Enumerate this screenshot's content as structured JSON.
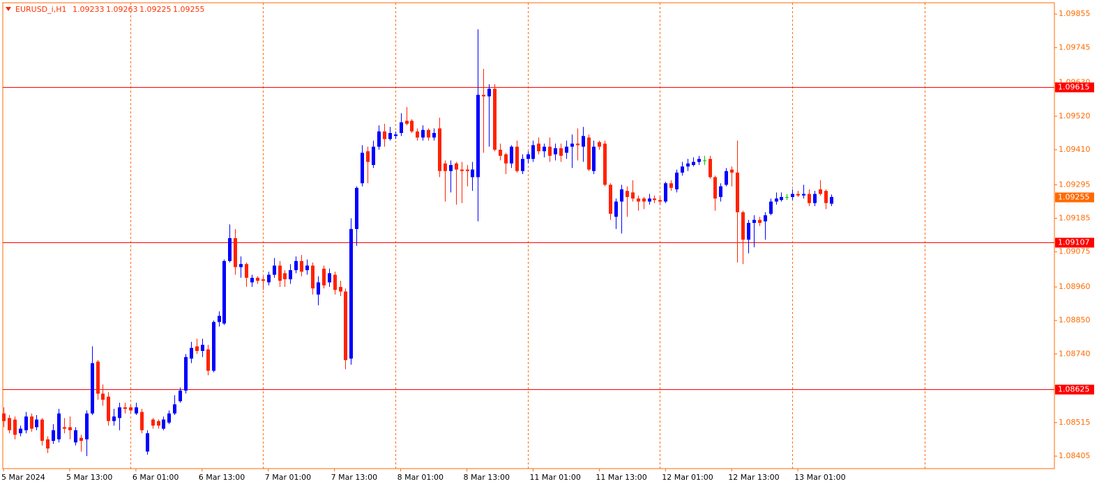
{
  "chart_data": {
    "type": "candlestick",
    "symbol": "EURUSD_i,H1",
    "up_color": "#0000ff",
    "down_color": "#ff2200",
    "doji_color": "#00c000",
    "axis_color": "#ff6a00",
    "hline_color": "#ff0000",
    "separator_color": "#ff6a00",
    "candles": [
      [
        1.08545,
        1.08565,
        1.085,
        1.0852
      ],
      [
        1.0853,
        1.0854,
        1.0848,
        1.0849
      ],
      [
        1.08525,
        1.08535,
        1.0846,
        1.08475
      ],
      [
        1.0848,
        1.08505,
        1.0847,
        1.08495
      ],
      [
        1.0849,
        1.0855,
        1.0848,
        1.08535
      ],
      [
        1.08535,
        1.08545,
        1.08485,
        1.08495
      ],
      [
        1.085,
        1.0854,
        1.0849,
        1.08525
      ],
      [
        1.08525,
        1.0853,
        1.0844,
        1.08455
      ],
      [
        1.0846,
        1.0847,
        1.08415,
        1.0843
      ],
      [
        1.08455,
        1.0851,
        1.08445,
        1.0849
      ],
      [
        1.0846,
        1.0856,
        1.0845,
        1.08545
      ],
      [
        1.085,
        1.0853,
        1.0848,
        1.08495
      ],
      [
        1.085,
        1.08535,
        1.0846,
        1.0849
      ],
      [
        1.0845,
        1.085,
        1.0844,
        1.0849
      ],
      [
        1.08465,
        1.08475,
        1.0842,
        1.08455
      ],
      [
        1.0846,
        1.08555,
        1.08405,
        1.08545
      ],
      [
        1.08545,
        1.08765,
        1.0854,
        1.0871
      ],
      [
        1.08715,
        1.0872,
        1.0859,
        1.0861
      ],
      [
        1.0861,
        1.0864,
        1.0857,
        1.0859
      ],
      [
        1.086,
        1.08615,
        1.08505,
        1.0852
      ],
      [
        1.0852,
        1.0856,
        1.08505,
        1.08535
      ],
      [
        1.0853,
        1.0858,
        1.0849,
        1.08565
      ],
      [
        1.08565,
        1.0858,
        1.08545,
        1.0856
      ],
      [
        1.08565,
        1.08575,
        1.08545,
        1.08555
      ],
      [
        1.08545,
        1.0858,
        1.0854,
        1.08565
      ],
      [
        1.0855,
        1.0856,
        1.0848,
        1.0849
      ],
      [
        1.0842,
        1.0849,
        1.0841,
        1.0848
      ],
      [
        1.08525,
        1.0853,
        1.08495,
        1.08505
      ],
      [
        1.0852,
        1.08525,
        1.08495,
        1.08505
      ],
      [
        1.08495,
        1.08535,
        1.0849,
        1.08525
      ],
      [
        1.08515,
        1.08555,
        1.0851,
        1.08545
      ],
      [
        1.08545,
        1.08605,
        1.0854,
        1.08575
      ],
      [
        1.08585,
        1.0863,
        1.0858,
        1.0862
      ],
      [
        1.0862,
        1.0874,
        1.0861,
        1.0873
      ],
      [
        1.08725,
        1.0878,
        1.0871,
        1.0876
      ],
      [
        1.08765,
        1.0879,
        1.0874,
        1.0875
      ],
      [
        1.0875,
        1.0879,
        1.0873,
        1.0877
      ],
      [
        1.08755,
        1.0877,
        1.0867,
        1.08685
      ],
      [
        1.08685,
        1.0885,
        1.0868,
        1.08845
      ],
      [
        1.08845,
        1.0888,
        1.0883,
        1.08865
      ],
      [
        1.0884,
        1.0905,
        1.08835,
        1.09045
      ],
      [
        1.09045,
        1.09165,
        1.0904,
        1.0912
      ],
      [
        1.0912,
        1.0915,
        1.09,
        1.09025
      ],
      [
        1.09025,
        1.0906,
        1.0899,
        1.09035
      ],
      [
        1.09035,
        1.0904,
        1.0896,
        1.0899
      ],
      [
        1.08975,
        1.09,
        1.0896,
        1.0899
      ],
      [
        1.0899,
        1.08995,
        1.0897,
        1.0898
      ],
      [
        1.08985,
        1.08995,
        1.0895,
        1.0898
      ],
      [
        1.08975,
        1.0901,
        1.08965,
        1.09
      ],
      [
        1.09,
        1.09055,
        1.0899,
        1.0903
      ],
      [
        1.0903,
        1.09045,
        1.0896,
        1.0898
      ],
      [
        1.09005,
        1.09015,
        1.0896,
        1.08985
      ],
      [
        1.08985,
        1.09035,
        1.0897,
        1.09015
      ],
      [
        1.09015,
        1.0906,
        1.09005,
        1.09045
      ],
      [
        1.09045,
        1.09065,
        1.08995,
        1.0901
      ],
      [
        1.09015,
        1.0905,
        1.09,
        1.0903
      ],
      [
        1.0903,
        1.0904,
        1.08935,
        1.08955
      ],
      [
        1.08935,
        1.08995,
        1.089,
        1.08975
      ],
      [
        1.0902,
        1.0903,
        1.08955,
        1.08965
      ],
      [
        1.08975,
        1.0902,
        1.0896,
        1.09005
      ],
      [
        1.09,
        1.0901,
        1.08935,
        1.0895
      ],
      [
        1.0896,
        1.0898,
        1.0893,
        1.08945
      ],
      [
        1.08945,
        1.08955,
        1.0869,
        1.0872
      ],
      [
        1.08725,
        1.09185,
        1.08705,
        1.0915
      ],
      [
        1.0915,
        1.0929,
        1.09095,
        1.09285
      ],
      [
        1.093,
        1.09425,
        1.0929,
        1.094
      ],
      [
        1.09405,
        1.0942,
        1.093,
        1.0937
      ],
      [
        1.0936,
        1.0944,
        1.0935,
        1.0942
      ],
      [
        1.0942,
        1.0949,
        1.0941,
        1.0947
      ],
      [
        1.0947,
        1.09495,
        1.0942,
        1.09445
      ],
      [
        1.09445,
        1.09485,
        1.0944,
        1.09465
      ],
      [
        1.09455,
        1.0947,
        1.09445,
        1.0946
      ],
      [
        1.09465,
        1.0953,
        1.09455,
        1.095
      ],
      [
        1.09505,
        1.0955,
        1.0949,
        1.09495
      ],
      [
        1.09505,
        1.0951,
        1.09465,
        1.0947
      ],
      [
        1.0947,
        1.0948,
        1.0944,
        1.0945
      ],
      [
        1.0945,
        1.0949,
        1.0944,
        1.09475
      ],
      [
        1.09475,
        1.0948,
        1.0944,
        1.0945
      ],
      [
        1.0945,
        1.0948,
        1.0944,
        1.09465
      ],
      [
        1.0948,
        1.09515,
        1.0932,
        1.0934
      ],
      [
        1.09365,
        1.09375,
        1.0924,
        1.0934
      ],
      [
        1.0934,
        1.09375,
        1.0927,
        1.0936
      ],
      [
        1.09365,
        1.0937,
        1.0923,
        1.09345
      ],
      [
        1.09345,
        1.0937,
        1.09235,
        1.0934
      ],
      [
        1.09345,
        1.0936,
        1.0929,
        1.0934
      ],
      [
        1.0932,
        1.0937,
        1.09275,
        1.09345
      ],
      [
        1.0932,
        1.09805,
        1.09175,
        1.0959
      ],
      [
        1.0959,
        1.09675,
        1.094,
        1.09585
      ],
      [
        1.09585,
        1.09625,
        1.0942,
        1.0961
      ],
      [
        1.0961,
        1.09625,
        1.09405,
        1.0941
      ],
      [
        1.0941,
        1.0943,
        1.09375,
        1.0939
      ],
      [
        1.09395,
        1.094,
        1.0933,
        1.09365
      ],
      [
        1.09365,
        1.09425,
        1.0935,
        1.0942
      ],
      [
        1.0942,
        1.0944,
        1.09335,
        1.0934
      ],
      [
        1.0934,
        1.09395,
        1.0933,
        1.0938
      ],
      [
        1.0938,
        1.09405,
        1.09365,
        1.09395
      ],
      [
        1.0938,
        1.0944,
        1.0937,
        1.09425
      ],
      [
        1.0943,
        1.0945,
        1.09395,
        1.09405
      ],
      [
        1.09405,
        1.0943,
        1.09385,
        1.0942
      ],
      [
        1.0942,
        1.0945,
        1.0937,
        1.0939
      ],
      [
        1.09395,
        1.0943,
        1.09375,
        1.09415
      ],
      [
        1.09415,
        1.0943,
        1.0937,
        1.0939
      ],
      [
        1.094,
        1.0944,
        1.0938,
        1.0942
      ],
      [
        1.0942,
        1.0946,
        1.0935,
        1.0943
      ],
      [
        1.0943,
        1.0948,
        1.09375,
        1.09425
      ],
      [
        1.0942,
        1.09485,
        1.0937,
        1.09455
      ],
      [
        1.0945,
        1.0946,
        1.0934,
        1.09345
      ],
      [
        1.0934,
        1.0944,
        1.0933,
        1.0942
      ],
      [
        1.09435,
        1.0944,
        1.0941,
        1.0942
      ],
      [
        1.0943,
        1.0944,
        1.0929,
        1.09295
      ],
      [
        1.09295,
        1.093,
        1.0918,
        1.092
      ],
      [
        1.0919,
        1.0925,
        1.0915,
        1.0924
      ],
      [
        1.0924,
        1.09295,
        1.09135,
        1.0928
      ],
      [
        1.09275,
        1.0929,
        1.0919,
        1.09255
      ],
      [
        1.0927,
        1.0931,
        1.0924,
        1.0925
      ],
      [
        1.0925,
        1.0926,
        1.0921,
        1.0924
      ],
      [
        1.0925,
        1.09255,
        1.09215,
        1.0924
      ],
      [
        1.0924,
        1.09265,
        1.0923,
        1.0925
      ],
      [
        1.0925,
        1.0926,
        1.09235,
        1.09245
      ],
      [
        1.09245,
        1.09255,
        1.0923,
        1.0924
      ],
      [
        1.0924,
        1.09305,
        1.09235,
        1.093
      ],
      [
        1.093,
        1.0931,
        1.09275,
        1.09285
      ],
      [
        1.0928,
        1.09345,
        1.0927,
        1.09335
      ],
      [
        1.09335,
        1.0937,
        1.09325,
        1.09355
      ],
      [
        1.09355,
        1.0938,
        1.0934,
        1.09365
      ],
      [
        1.0936,
        1.09385,
        1.09355,
        1.0937
      ],
      [
        1.0937,
        1.0939,
        1.0936,
        1.0938
      ],
      [
        1.09375,
        1.0939,
        1.0936,
        1.09375
      ],
      [
        1.0938,
        1.0939,
        1.09315,
        1.0932
      ],
      [
        1.0932,
        1.09325,
        1.0921,
        1.0925
      ],
      [
        1.09255,
        1.093,
        1.0924,
        1.0929
      ],
      [
        1.09295,
        1.0935,
        1.0929,
        1.0934
      ],
      [
        1.09345,
        1.09355,
        1.0929,
        1.09335
      ],
      [
        1.09335,
        1.0944,
        1.0904,
        1.09205
      ],
      [
        1.09205,
        1.0921,
        1.09035,
        1.09115
      ],
      [
        1.09115,
        1.0918,
        1.0907,
        1.0917
      ],
      [
        1.0917,
        1.09195,
        1.0909,
        1.0918
      ],
      [
        1.0918,
        1.0919,
        1.0916,
        1.0917
      ],
      [
        1.09175,
        1.09205,
        1.09115,
        1.09195
      ],
      [
        1.092,
        1.0925,
        1.09195,
        1.0924
      ],
      [
        1.0924,
        1.0927,
        1.0923,
        1.0925
      ],
      [
        1.09245,
        1.0927,
        1.0924,
        1.09255
      ],
      [
        1.09255,
        1.09265,
        1.09245,
        1.09255
      ],
      [
        1.09255,
        1.0928,
        1.09245,
        1.09265
      ],
      [
        1.09265,
        1.09275,
        1.09255,
        1.0926
      ],
      [
        1.0926,
        1.09295,
        1.0925,
        1.09265
      ],
      [
        1.09265,
        1.0928,
        1.09225,
        1.09235
      ],
      [
        1.09235,
        1.09275,
        1.09225,
        1.09265
      ],
      [
        1.0928,
        1.0931,
        1.0926,
        1.09265
      ],
      [
        1.09275,
        1.0928,
        1.09215,
        1.09235
      ],
      [
        1.09233,
        1.09263,
        1.09225,
        1.09255
      ]
    ],
    "xlim": [
      -0.13,
      190.5
    ],
    "xticks": [
      {
        "value": 0,
        "label": "5 Mar 2024"
      },
      {
        "value": 12,
        "label": "5 Mar 13:00"
      },
      {
        "value": 24,
        "label": "6 Mar 01:00"
      },
      {
        "value": 36,
        "label": "6 Mar 13:00"
      },
      {
        "value": 48,
        "label": "7 Mar 01:00"
      },
      {
        "value": 60,
        "label": "7 Mar 13:00"
      },
      {
        "value": 72,
        "label": "8 Mar 01:00"
      },
      {
        "value": 84,
        "label": "8 Mar 13:00"
      },
      {
        "value": 96,
        "label": "11 Mar 01:00"
      },
      {
        "value": 108,
        "label": "11 Mar 13:00"
      },
      {
        "value": 120,
        "label": "12 Mar 01:00"
      },
      {
        "value": 132,
        "label": "12 Mar 13:00"
      },
      {
        "value": 144,
        "label": "13 Mar 01:00"
      }
    ],
    "separators": [
      23,
      47,
      71,
      95,
      119,
      143,
      167
    ],
    "ylim": [
      1.08364,
      1.09892
    ],
    "yticks": [
      1.09855,
      1.09745,
      {
        "value": 1.0963,
        "label": "1.09630"
      },
      {
        "value": 1.0952,
        "label": "1.09520"
      },
      {
        "value": 1.0941,
        "label": "1.09410"
      },
      1.09295,
      1.09185,
      1.09075,
      {
        "value": 1.0896,
        "label": "1.08960"
      },
      {
        "value": 1.0885,
        "label": "1.08850"
      },
      {
        "value": 1.0874,
        "label": "1.08740"
      },
      1.08515,
      1.08405
    ],
    "hlines": [
      1.09615,
      1.09107,
      1.08625
    ]
  }
}
